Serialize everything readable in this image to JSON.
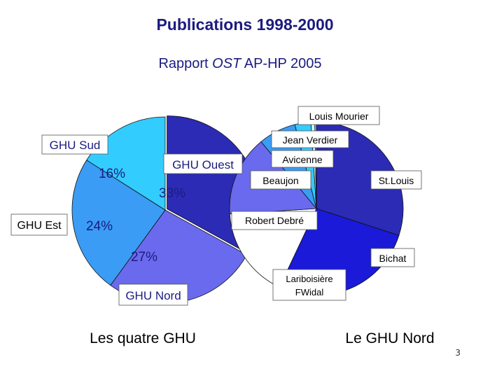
{
  "title": "Publications 1998-2000",
  "subtitle": {
    "prefix": "Rapport ",
    "italic": "OST",
    "suffix": " AP-HP 2005"
  },
  "page_number": "3",
  "chart_data": [
    {
      "type": "pie",
      "title": "Les quatre GHU",
      "slices": [
        {
          "label": "GHU Ouest",
          "value": 33,
          "value_label": "33%",
          "color": "#2b2bb5"
        },
        {
          "label": "GHU Nord",
          "value": 27,
          "value_label": "27%",
          "color": "#6a6aee"
        },
        {
          "label": "GHU Est",
          "value": 24,
          "value_label": "24%",
          "color": "#3a9cf5"
        },
        {
          "label": "GHU Sud",
          "value": 16,
          "value_label": "16%",
          "color": "#33ccff"
        }
      ]
    },
    {
      "type": "pie",
      "title": "Le GHU Nord",
      "slices": [
        {
          "label": "St.Louis",
          "value": 30,
          "color": "#2b2bb5"
        },
        {
          "label": "Bichat",
          "value": 27,
          "color": "#1a1ad8"
        },
        {
          "label": "Lariboisière FWidal",
          "value": 17,
          "color": "#ffffff"
        },
        {
          "label": "Robert Debré",
          "value": 15,
          "color": "#6a6aee"
        },
        {
          "label": "Beaujon",
          "value": 7,
          "color": "#3a9cf5"
        },
        {
          "label": "Avicenne",
          "value": 3,
          "color": "#33ccff"
        },
        {
          "label": "Jean Verdier",
          "value": 0.7,
          "color": "#ccffff"
        },
        {
          "label": "Louis Mourier",
          "value": 0.3,
          "color": "#99ccff"
        }
      ]
    }
  ]
}
